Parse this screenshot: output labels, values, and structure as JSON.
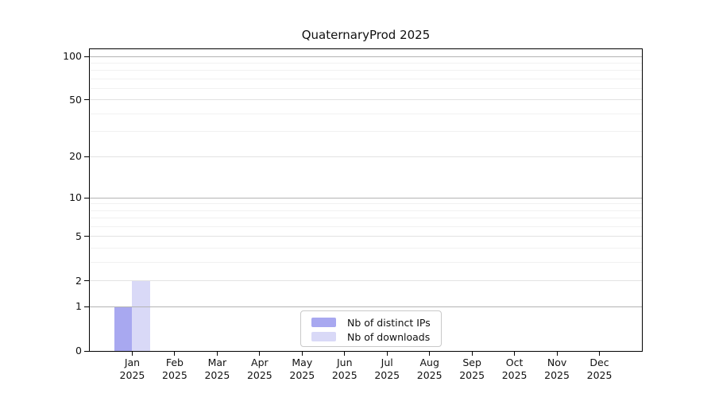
{
  "chart_data": {
    "type": "bar",
    "title": "QuaternaryProd 2025",
    "categories": [
      "Jan",
      "Feb",
      "Mar",
      "Apr",
      "May",
      "Jun",
      "Jul",
      "Aug",
      "Sep",
      "Oct",
      "Nov",
      "Dec"
    ],
    "x_tick_year": "2025",
    "series": [
      {
        "name": "Nb of distinct IPs",
        "color": "#a8a8f0",
        "values": [
          1,
          0,
          0,
          0,
          0,
          0,
          0,
          0,
          0,
          0,
          0,
          0
        ]
      },
      {
        "name": "Nb of downloads",
        "color": "#d9d9f7",
        "values": [
          2,
          0,
          0,
          0,
          0,
          0,
          0,
          0,
          0,
          0,
          0,
          0
        ]
      }
    ],
    "yscale": "log1p",
    "ylim": [
      0,
      100
    ],
    "y_tick_labels": [
      0,
      1,
      2,
      5,
      10,
      20,
      50,
      100
    ],
    "y_decade_gridlines": [
      1,
      10,
      100
    ],
    "y_major_gridlines": [
      2,
      5,
      20,
      50
    ],
    "y_minor_gridlines": [
      3,
      4,
      6,
      7,
      8,
      9,
      30,
      40,
      60,
      70,
      80,
      90
    ],
    "grid": true,
    "legend_position": "bottom-center",
    "colors": {
      "decade_gridline": "#b3b3b3",
      "major_gridline": "#e2e2e2",
      "minor_gridline": "#f1f1f1",
      "axis": "#000000",
      "background": "#ffffff"
    }
  }
}
